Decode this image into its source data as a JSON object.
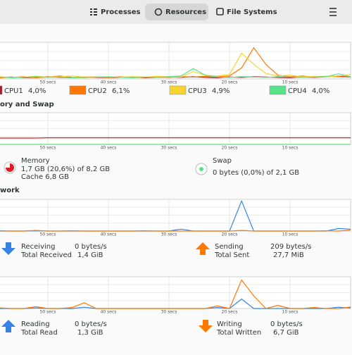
{
  "tabs": [
    "Processes",
    "Resources",
    "File Systems"
  ],
  "active_tab": 1,
  "headings": [
    "ory and Swap",
    "work"
  ],
  "cpu_values": [
    "4,0%",
    "6,1%",
    "4,9%",
    "4,0%"
  ],
  "memory": {
    "label": "Memory",
    "detail": "1,7 GB (20,6%) of 8,2 GB",
    "cache": "Cache 6,8 GB"
  },
  "swap": {
    "label": "Swap",
    "detail": "0 bytes (0,0%) of 2,1 GB"
  },
  "network": {
    "receiving": "Receiving",
    "total_received": "Total Received",
    "receiving_rate": "0 bytes/s",
    "received": "1,4 GiB",
    "sending": "Sending",
    "total_sent": "Total Sent",
    "sending_rate": "209 bytes/s",
    "sent": "27,7 MiB"
  },
  "disk": {
    "reading": "Reading",
    "total_read": "Total Read",
    "reading_rate": "0 bytes/s",
    "read": "1,3 GiB",
    "writing": "Writing",
    "total_written": "Total Written",
    "writing_rate": "0 bytes/s",
    "written": "6,7 GiB"
  },
  "chart_data": [
    {
      "type": "line",
      "xlim": [
        60,
        0
      ],
      "ylim": [
        0,
        100
      ],
      "xticks": [
        {
          "value": 50,
          "label": "50 secs"
        },
        {
          "value": 40,
          "label": "40 secs"
        },
        {
          "value": 30,
          "label": "30 secs"
        },
        {
          "value": 20,
          "label": "20 secs"
        },
        {
          "value": 10,
          "label": "10 secs"
        }
      ],
      "series": [
        {
          "name": "CPU1",
          "color": "#a51d2d",
          "values": [
            3,
            4,
            5,
            3,
            4,
            6,
            4,
            3,
            5,
            4,
            3,
            4,
            5,
            3,
            4,
            5,
            4,
            6,
            4,
            3,
            5,
            4,
            6,
            5,
            4,
            3,
            5,
            4,
            6,
            8,
            5
          ]
        },
        {
          "name": "CPU2",
          "color": "#ff7800",
          "values": [
            2,
            3,
            4,
            6,
            3,
            5,
            8,
            4,
            3,
            5,
            4,
            6,
            3,
            4,
            5,
            4,
            6,
            5,
            7,
            6,
            8,
            30,
            85,
            40,
            10,
            6,
            8,
            5,
            7,
            6,
            5
          ]
        },
        {
          "name": "CPU3",
          "color": "#f6d32d",
          "values": [
            5,
            6,
            4,
            5,
            7,
            5,
            6,
            8,
            5,
            6,
            4,
            5,
            6,
            5,
            7,
            6,
            5,
            20,
            10,
            8,
            12,
            70,
            40,
            15,
            8,
            10,
            6,
            7,
            6,
            8,
            12
          ]
        },
        {
          "name": "CPU4",
          "color": "#57e389",
          "values": [
            4,
            5,
            3,
            4,
            6,
            4,
            5,
            3,
            4,
            5,
            6,
            4,
            3,
            5,
            4,
            6,
            8,
            28,
            10,
            5,
            4,
            6,
            5,
            4,
            6,
            5,
            4,
            5,
            6,
            14,
            6
          ]
        }
      ]
    },
    {
      "type": "line",
      "xlim": [
        60,
        0
      ],
      "ylim": [
        0,
        100
      ],
      "xticks": [
        {
          "value": 50,
          "label": "50 secs"
        },
        {
          "value": 40,
          "label": "40 secs"
        },
        {
          "value": 30,
          "label": "30 secs"
        },
        {
          "value": 20,
          "label": "20 secs"
        },
        {
          "value": 10,
          "label": "10 secs"
        }
      ],
      "series": [
        {
          "color": "#e01b24",
          "values": [
            20,
            20,
            20,
            20,
            20,
            21,
            21,
            21,
            21,
            21,
            21,
            21,
            21,
            21,
            21,
            21,
            21,
            21,
            21,
            21,
            21,
            21,
            21,
            21,
            21,
            21,
            21,
            21,
            21,
            21,
            21
          ]
        },
        {
          "color": "#57e389",
          "values": [
            0,
            0,
            0,
            0,
            0,
            0,
            0,
            0,
            0,
            0,
            0,
            0,
            0,
            0,
            0,
            0,
            0,
            0,
            0,
            0,
            0,
            0,
            0,
            0,
            0,
            0,
            0,
            0,
            0,
            0,
            0
          ]
        }
      ]
    },
    {
      "type": "line",
      "xlim": [
        60,
        0
      ],
      "ylim": [
        0,
        100
      ],
      "xticks": [
        {
          "value": 50,
          "label": "50 secs"
        },
        {
          "value": 40,
          "label": "40 secs"
        },
        {
          "value": 30,
          "label": "30 secs"
        },
        {
          "value": 20,
          "label": "20 secs"
        },
        {
          "value": 10,
          "label": "10 secs"
        }
      ],
      "series": [
        {
          "color": "#3584e4",
          "values": [
            0,
            0,
            0,
            0,
            1,
            0,
            0,
            0,
            0,
            0,
            0,
            0,
            0,
            0,
            0,
            0,
            6,
            0,
            0,
            0,
            0,
            95,
            0,
            0,
            0,
            0,
            0,
            0,
            0,
            8,
            6
          ]
        },
        {
          "color": "#ff7800",
          "values": [
            0,
            1,
            0,
            0,
            2,
            0,
            0,
            1,
            0,
            0,
            0,
            0,
            0,
            1,
            0,
            0,
            0,
            0,
            0,
            0,
            0,
            2,
            0,
            0,
            0,
            0,
            0,
            0,
            1,
            0,
            3
          ]
        }
      ]
    },
    {
      "type": "line",
      "xlim": [
        60,
        0
      ],
      "ylim": [
        0,
        100
      ],
      "xticks": [
        {
          "value": 50,
          "label": "50 secs"
        },
        {
          "value": 40,
          "label": "40 secs"
        },
        {
          "value": 30,
          "label": "30 secs"
        },
        {
          "value": 20,
          "label": "20 secs"
        },
        {
          "value": 10,
          "label": "10 secs"
        }
      ],
      "series": [
        {
          "color": "#3584e4",
          "values": [
            0,
            0,
            0,
            0,
            2,
            0,
            0,
            0,
            4,
            0,
            0,
            0,
            0,
            0,
            0,
            0,
            0,
            0,
            0,
            3,
            0,
            30,
            0,
            0,
            0,
            0,
            0,
            0,
            0,
            4,
            2
          ]
        },
        {
          "color": "#ff7800",
          "values": [
            0,
            2,
            0,
            0,
            6,
            0,
            0,
            3,
            18,
            0,
            0,
            0,
            0,
            0,
            0,
            0,
            0,
            0,
            0,
            8,
            0,
            90,
            40,
            0,
            10,
            0,
            0,
            3,
            0,
            0,
            5
          ]
        }
      ]
    }
  ]
}
